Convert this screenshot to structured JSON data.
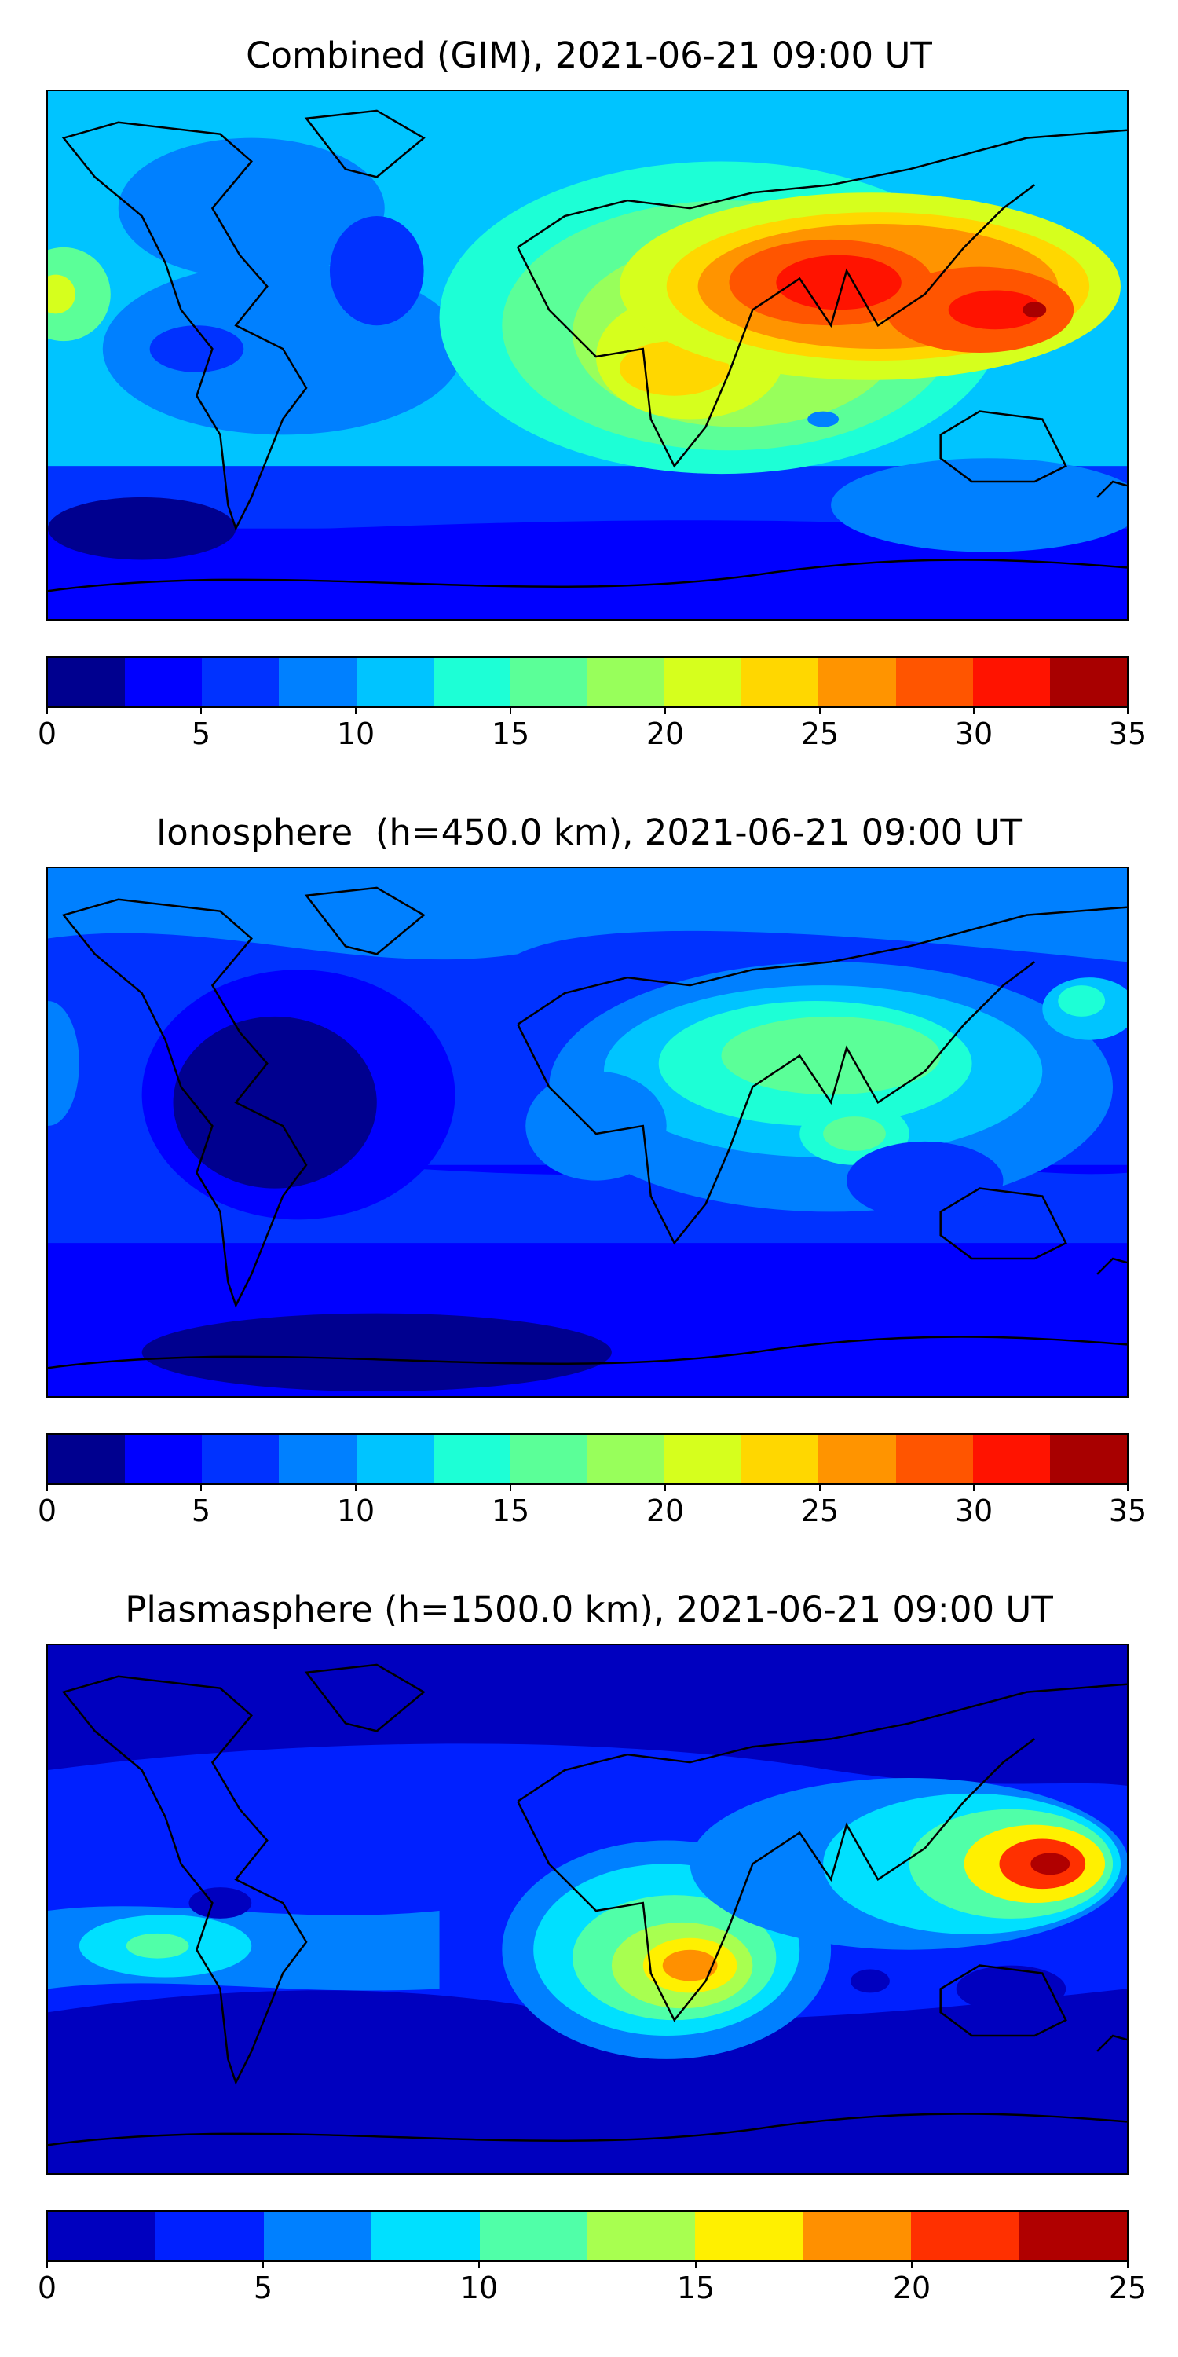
{
  "panels": [
    {
      "title": "Combined (GIM), 2021-06-21 09:00 UT",
      "colormap": [
        "#00008f",
        "#0000ff",
        "#0032ff",
        "#0080ff",
        "#00c4ff",
        "#1dffd6",
        "#5bff98",
        "#98ff5b",
        "#d6ff1d",
        "#ffd700",
        "#ff9400",
        "#ff5500",
        "#ff1300",
        "#a80000"
      ],
      "colorbar_ticks": [
        "0",
        "5",
        "10",
        "15",
        "20",
        "25",
        "30",
        "35"
      ],
      "colorbar_range": [
        0,
        35
      ],
      "units": ""
    },
    {
      "title": "Ionosphere  (h=450.0 km), 2021-06-21 09:00 UT",
      "colormap": [
        "#00008f",
        "#0000ff",
        "#0032ff",
        "#0080ff",
        "#00c4ff",
        "#1dffd6",
        "#5bff98",
        "#98ff5b",
        "#d6ff1d",
        "#ffd700",
        "#ff9400",
        "#ff5500",
        "#ff1300",
        "#a80000"
      ],
      "colorbar_ticks": [
        "0",
        "5",
        "10",
        "15",
        "20",
        "25",
        "30",
        "35"
      ],
      "colorbar_range": [
        0,
        35
      ],
      "units": ""
    },
    {
      "title": "Plasmasphere (h=1500.0 km), 2021-06-21 09:00 UT",
      "colormap": [
        "#0000bf",
        "#0020ff",
        "#0080ff",
        "#00e0ff",
        "#50ffa8",
        "#a8ff50",
        "#fff000",
        "#ff9000",
        "#ff3000",
        "#b00000"
      ],
      "colorbar_ticks": [
        "0",
        "5",
        "10",
        "15",
        "20",
        "25"
      ],
      "colorbar_range": [
        0,
        25
      ],
      "units": ""
    }
  ]
}
